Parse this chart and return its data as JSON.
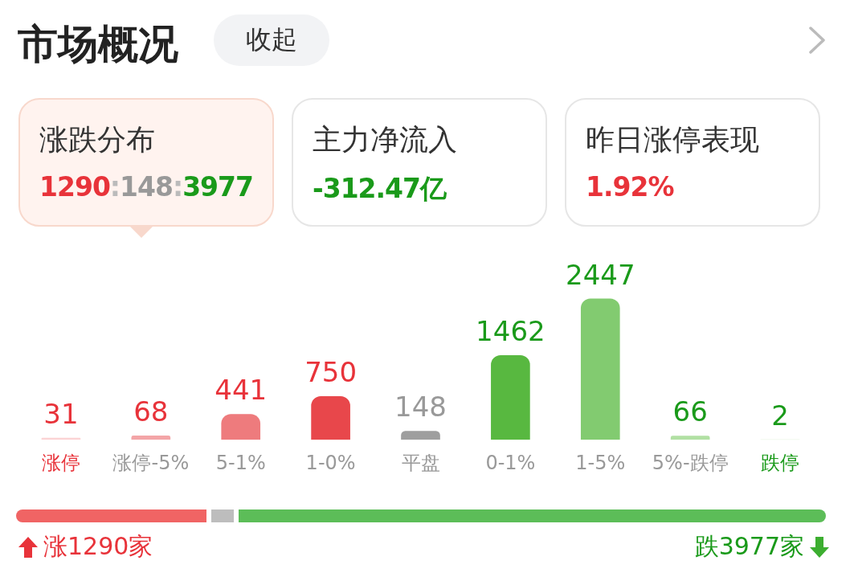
{
  "chart_data": {
    "type": "bar",
    "categories": [
      "涨停",
      "涨停-5%",
      "5-1%",
      "1-0%",
      "平盘",
      "0-1%",
      "1-5%",
      "5%-跌停",
      "跌停"
    ],
    "values": [
      31,
      68,
      441,
      750,
      148,
      1462,
      2447,
      66,
      2
    ],
    "colors": [
      "#fbd3d4",
      "#f3a5a7",
      "#ee7b7d",
      "#e8474b",
      "#9e9e9e",
      "#58b840",
      "#82cb70",
      "#b1e0a3",
      "#d6f0cd"
    ],
    "data_labels": true,
    "grid": false,
    "legend": false,
    "annotations": [
      "市场概况",
      "收起",
      "涨跌分布",
      "1290:148:3977",
      "主力净流入",
      "-312.47亿",
      "昨日涨停表现",
      "1.92%",
      "涨1290家",
      "跌3977家"
    ]
  }
}
